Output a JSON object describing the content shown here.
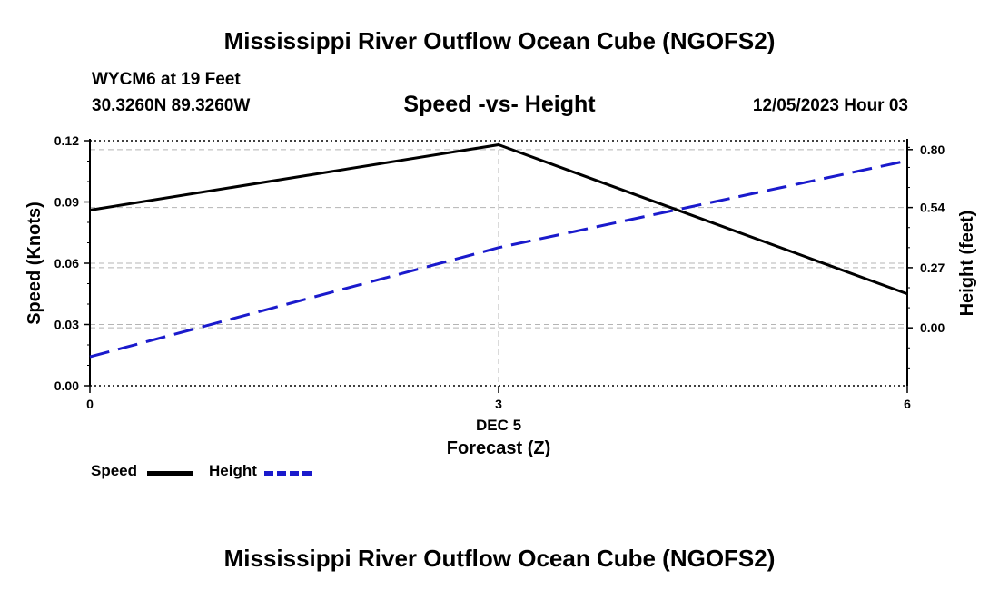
{
  "header": {
    "title": "Mississippi River Outflow Ocean Cube (NGOFS2)",
    "station": "WYCM6 at 19 Feet",
    "coords": "30.3260N  89.3260W",
    "date": "12/05/2023 Hour 03",
    "bottom_title": "Mississippi River Outflow Ocean Cube (NGOFS2)"
  },
  "legend": {
    "speed_label": "Speed",
    "height_label": "Height"
  },
  "colors": {
    "speed": "#000000",
    "height": "#1a1acc",
    "grid": "#b4b4b4"
  },
  "chart_data": {
    "type": "line",
    "title": "Speed -vs- Height",
    "xlabel": "Forecast (Z)",
    "xlabel_sub": "DEC 5",
    "ylabel_left": "Speed (Knots)",
    "ylabel_right": "Height (feet)",
    "x": [
      0,
      3,
      6
    ],
    "x_ticks": [
      0,
      3,
      6
    ],
    "x_tick_labels": [
      "0",
      "3",
      "6"
    ],
    "xlim": [
      0,
      6
    ],
    "ylim_left": [
      0.0,
      0.12
    ],
    "y_ticks_left": [
      0.0,
      0.03,
      0.06,
      0.09,
      0.12
    ],
    "y_tick_labels_left": [
      "0.00",
      "0.03",
      "0.06",
      "0.09",
      "0.12"
    ],
    "ylim_right": [
      -0.26,
      0.84
    ],
    "y_ticks_right": [
      0.0,
      0.27,
      0.54,
      0.8
    ],
    "y_tick_labels_right": [
      "0.00",
      "0.27",
      "0.54",
      "0.80"
    ],
    "series": [
      {
        "name": "Speed",
        "axis": "left",
        "style": "solid",
        "values": [
          0.086,
          0.118,
          0.045
        ]
      },
      {
        "name": "Height",
        "axis": "right",
        "style": "dashed",
        "values": [
          -0.13,
          0.36,
          0.75
        ]
      }
    ]
  }
}
